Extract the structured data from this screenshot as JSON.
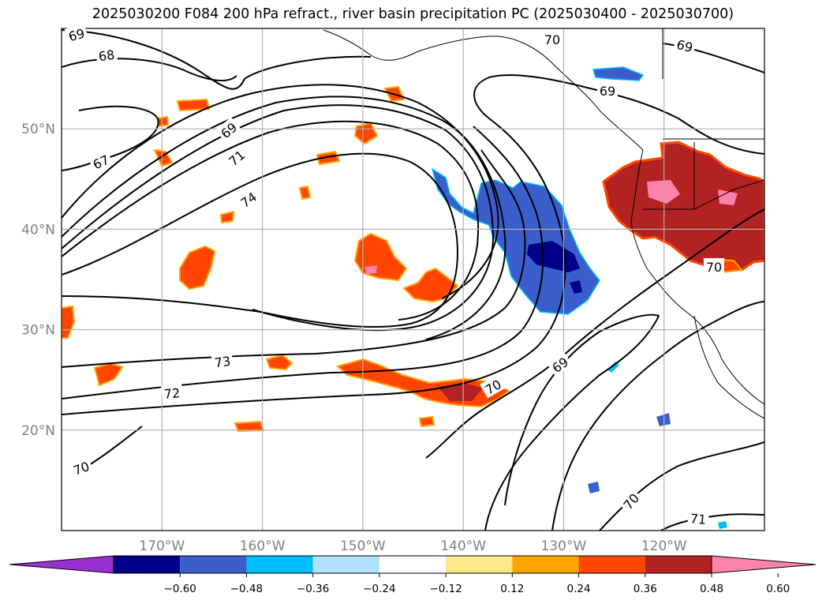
{
  "title": "2025030200 F084 200 hPa refract., river basin precipitation PC (2025030400 - 2025030700)",
  "map": {
    "lon_range": [
      -180,
      -110
    ],
    "lat_range": [
      10,
      60
    ],
    "lat_ticks": [
      {
        "lat": 50,
        "label": "50°N"
      },
      {
        "lat": 40,
        "label": "40°N"
      },
      {
        "lat": 30,
        "label": "30°N"
      },
      {
        "lat": 20,
        "label": "20°N"
      }
    ],
    "lon_ticks": [
      {
        "lon": -170,
        "label": "170°W"
      },
      {
        "lon": -160,
        "label": "160°W"
      },
      {
        "lon": -150,
        "label": "150°W"
      },
      {
        "lon": -140,
        "label": "140°W"
      },
      {
        "lon": -130,
        "label": "130°W"
      },
      {
        "lon": -120,
        "label": "120°W"
      }
    ],
    "grid": true,
    "contour_labels": [
      "69",
      "68",
      "67",
      "69",
      "71",
      "74",
      "73",
      "72",
      "70",
      "70",
      "69",
      "69",
      "70",
      "70",
      "71",
      "70",
      "69"
    ]
  },
  "colorbar": {
    "extend": "both",
    "bounds": [
      -0.72,
      -0.6,
      -0.48,
      -0.36,
      -0.24,
      -0.12,
      0.12,
      0.24,
      0.36,
      0.48,
      0.6,
      0.72
    ],
    "colors": [
      "#9b30d0",
      "#00008b",
      "#3a5fcd",
      "#00bfff",
      "#b0e2ff",
      "#ffffff",
      "#fee88b",
      "#ffa500",
      "#ff4500",
      "#b22222",
      "#ff82ab",
      "#ff82ab"
    ],
    "tick_labels": [
      "−0.60",
      "−0.48",
      "−0.36",
      "−0.24",
      "−0.12",
      "0.12",
      "0.24",
      "0.36",
      "0.48",
      "0.60"
    ]
  },
  "colors": {
    "grid": "#b0b0b0",
    "tick_text": "#808080",
    "contour": "#000000"
  }
}
